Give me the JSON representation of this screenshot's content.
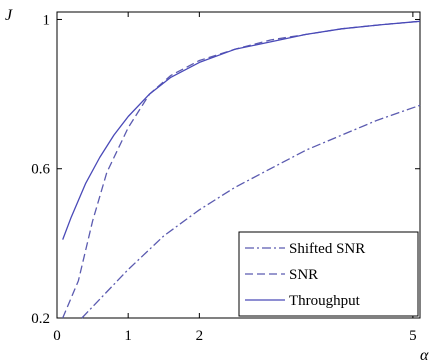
{
  "chart_data": {
    "type": "line",
    "ylabel": "J",
    "xlabel": "α",
    "xlim": [
      0,
      5.1
    ],
    "ylim": [
      0.2,
      1.02
    ],
    "x_ticks": [
      {
        "value": 0,
        "label": "0"
      },
      {
        "value": 1,
        "label": "1"
      },
      {
        "value": 2,
        "label": "2"
      },
      {
        "value": 5,
        "label": "5"
      }
    ],
    "y_ticks": [
      {
        "value": 0.2,
        "label": "0.2"
      },
      {
        "value": 0.6,
        "label": "0.6"
      },
      {
        "value": 1.0,
        "label": "1"
      }
    ],
    "grid": false,
    "legend_position": "bottom-right",
    "series": [
      {
        "name": "Shifted SNR",
        "style": "dashdot",
        "color": "#5b5bb0",
        "x": [
          0.35,
          0.6,
          1.0,
          1.5,
          2.0,
          2.5,
          3.0,
          3.5,
          4.0,
          4.5,
          5.1
        ],
        "y": [
          0.2,
          0.25,
          0.33,
          0.42,
          0.49,
          0.55,
          0.6,
          0.65,
          0.69,
          0.73,
          0.77
        ]
      },
      {
        "name": "SNR",
        "style": "dashed",
        "color": "#5b5bb0",
        "x": [
          0.08,
          0.3,
          0.5,
          0.7,
          1.0,
          1.3,
          1.6,
          2.0,
          2.5,
          3.0,
          3.5,
          4.0,
          4.5,
          5.1
        ],
        "y": [
          0.2,
          0.3,
          0.46,
          0.59,
          0.71,
          0.8,
          0.85,
          0.89,
          0.92,
          0.945,
          0.96,
          0.975,
          0.985,
          0.995
        ]
      },
      {
        "name": "Throughput",
        "style": "solid",
        "color": "#4a4ab8",
        "x": [
          0.08,
          0.2,
          0.4,
          0.6,
          0.8,
          1.0,
          1.3,
          1.6,
          2.0,
          2.5,
          3.0,
          3.5,
          4.0,
          4.5,
          5.1
        ],
        "y": [
          0.41,
          0.47,
          0.56,
          0.63,
          0.69,
          0.74,
          0.8,
          0.845,
          0.885,
          0.92,
          0.94,
          0.96,
          0.975,
          0.985,
          0.995
        ]
      }
    ]
  }
}
